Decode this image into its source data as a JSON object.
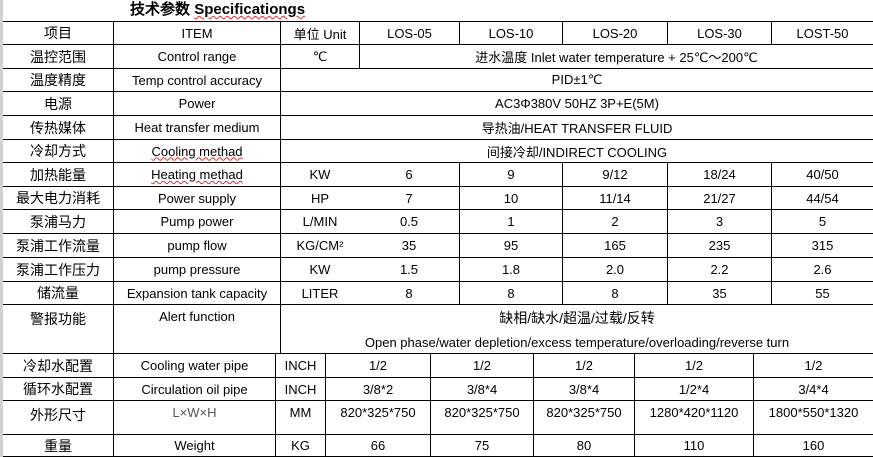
{
  "title": {
    "zh": "技术参数",
    "en": "Specificationgs"
  },
  "header": {
    "item_zh": "项目",
    "item_en": "ITEM",
    "unit": "单位 Unit",
    "models": [
      "LOS-05",
      "LOS-10",
      "LOS-20",
      "LOS-30",
      "LOST-50"
    ]
  },
  "merged_rows": [
    {
      "zh": "温控范围",
      "en": "Control range",
      "unit": "℃",
      "value": "进水温度 Inlet water temperature + 25℃～200℃"
    },
    {
      "zh": "温度精度",
      "en": "Temp control accuracy",
      "value": "PID±1℃"
    },
    {
      "zh": "电源",
      "en": "Power",
      "value": "AC3Φ380V 50HZ 3P+E(5M)"
    },
    {
      "zh": "传热媒体",
      "en": "Heat transfer medium",
      "value": "导热油/HEAT TRANSFER FLUID"
    },
    {
      "zh": "冷却方式",
      "en": "Cooling methad",
      "value": "间接冷却/INDIRECT COOLING"
    }
  ],
  "value_rows": [
    {
      "zh": "加热能量",
      "en": "Heating methad",
      "unit": "KW",
      "values": [
        "6",
        "9",
        "9/12",
        "18/24",
        "40/50"
      ]
    },
    {
      "zh": "最大电力消耗",
      "en": "Power supply",
      "unit": "HP",
      "values": [
        "7",
        "10",
        "11/14",
        "21/27",
        "44/54"
      ]
    },
    {
      "zh": "泵浦马力",
      "en": "Pump power",
      "unit": "L/MIN",
      "values": [
        "0.5",
        "1",
        "2",
        "3",
        "5"
      ]
    },
    {
      "zh": "泵浦工作流量",
      "en": "pump flow",
      "unit": "KG/CM²",
      "values": [
        "35",
        "95",
        "165",
        "235",
        "315"
      ]
    },
    {
      "zh": "泵浦工作压力",
      "en": "pump pressure",
      "unit": "KW",
      "values": [
        "1.5",
        "1.8",
        "2.0",
        "2.2",
        "2.6"
      ]
    },
    {
      "zh": "储流量",
      "en": "Expansion tank capacity",
      "unit": "LITER",
      "values": [
        "8",
        "8",
        "8",
        "35",
        "55"
      ]
    }
  ],
  "alert": {
    "zh": "警报功能",
    "en": "Alert function",
    "value_zh": "缺相/缺水/超温/过载/反转",
    "value_en": "Open phase/water depletion/excess temperature/overloading/reverse turn"
  },
  "bottom_rows": [
    {
      "zh": "冷却水配置",
      "en": "Cooling water pipe",
      "unit": "INCH",
      "values": [
        "1/2",
        "1/2",
        "1/2",
        "1/2",
        "1/2"
      ]
    },
    {
      "zh": "循环水配置",
      "en": "Circulation oil pipe",
      "unit": "INCH",
      "values": [
        "3/8*2",
        "3/8*4",
        "3/8*4",
        "1/2*4",
        "3/4*4"
      ]
    },
    {
      "zh": "外形尺寸",
      "en": "L×W×H",
      "unit": "MM",
      "values": [
        "820*325*750",
        "820*325*750",
        "820*325*750",
        "1280*420*1120",
        "1800*550*1320"
      ]
    },
    {
      "zh": "重量",
      "en": "Weight",
      "unit": "KG",
      "values": [
        "66",
        "75",
        "80",
        "110",
        "160"
      ]
    }
  ]
}
